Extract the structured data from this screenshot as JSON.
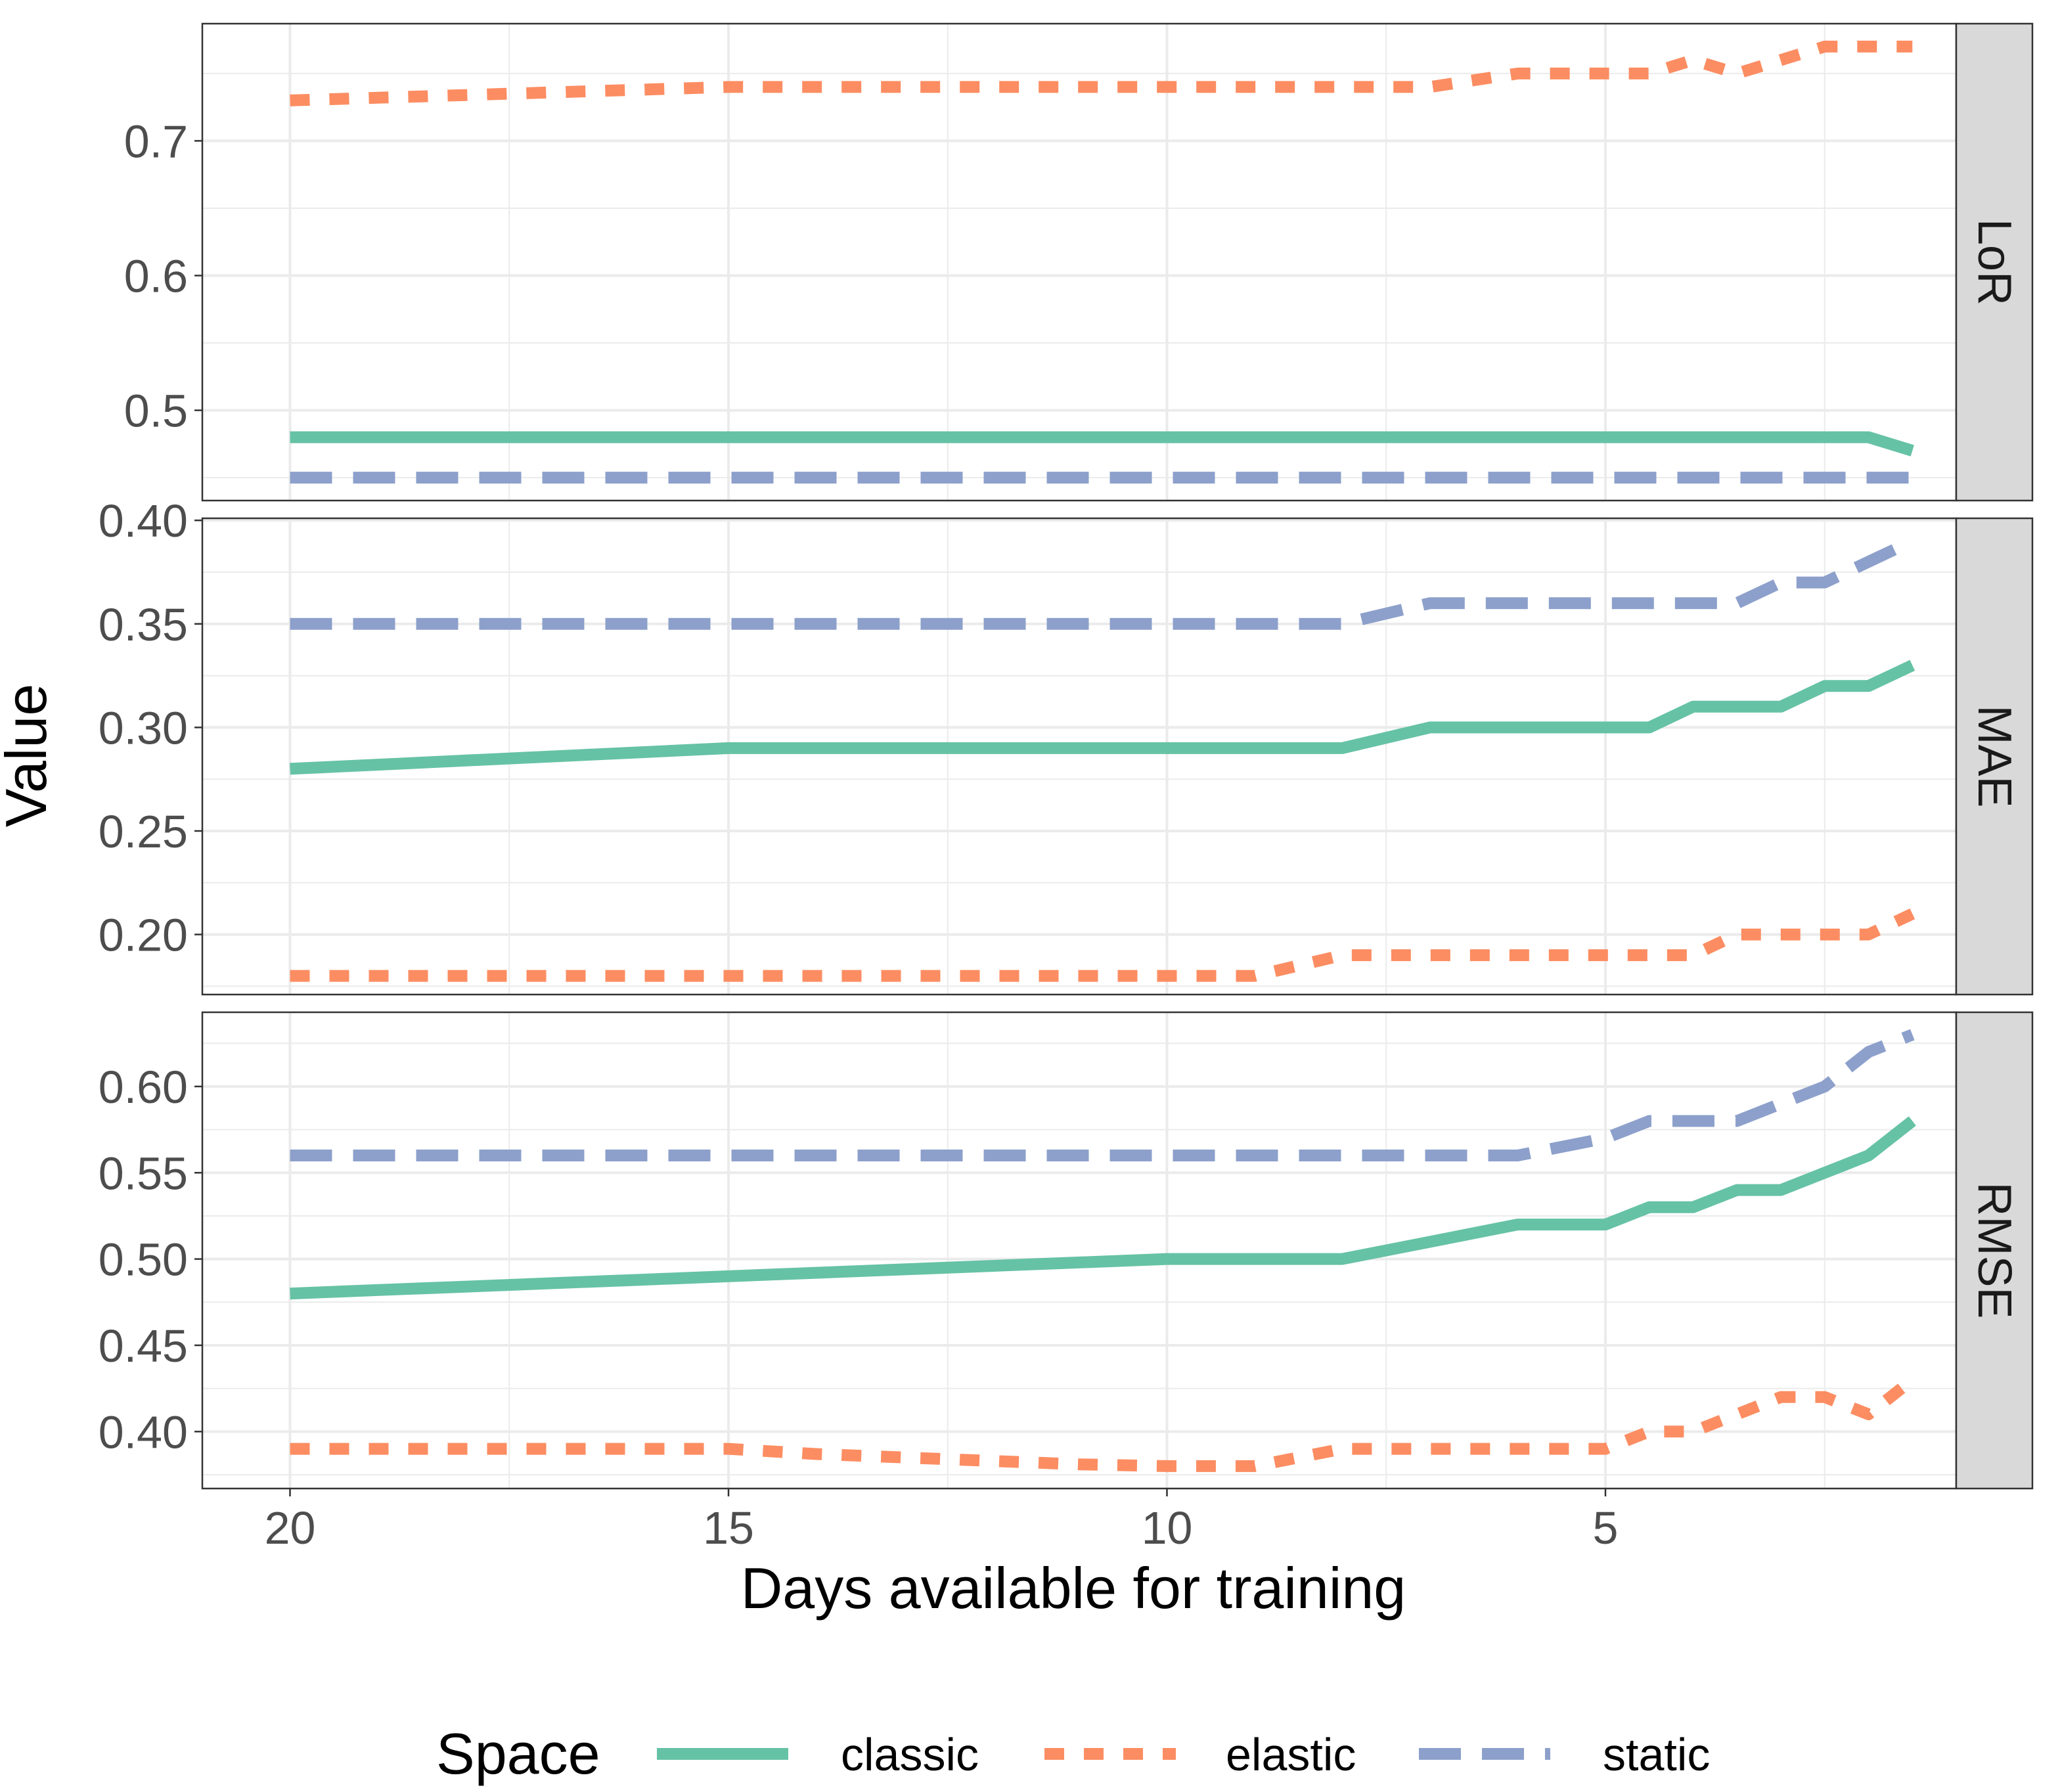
{
  "colors": {
    "classic": "#66c2a5",
    "elastic": "#fc8d62",
    "static": "#8da0cb",
    "grid": "#ebebeb",
    "strip": "#d9d9d9",
    "panel_border": "#333333",
    "tick_text": "#4d4d4d"
  },
  "chart_data": {
    "type": "line",
    "xlabel": "Days available for training",
    "ylabel": "Value",
    "x_reversed": true,
    "x": [
      20,
      19,
      18,
      17,
      16,
      15,
      14,
      13,
      12,
      11,
      10,
      9,
      8,
      7,
      6,
      5,
      4.5,
      4,
      3.5,
      3,
      2.5,
      2,
      1.5
    ],
    "xlim": [
      21,
      1
    ],
    "x_ticks": [
      20,
      15,
      10,
      5
    ],
    "x_tick_labels": [
      "20",
      "15",
      "10",
      "5"
    ],
    "legend": {
      "title": "Space",
      "position": "bottom",
      "entries": [
        {
          "name": "classic",
          "dash": "solid"
        },
        {
          "name": "elastic",
          "dash": "dotted"
        },
        {
          "name": "static",
          "dash": "dashed"
        }
      ]
    },
    "panels": [
      {
        "strip": "LoR",
        "ylim": [
          0.433,
          0.787
        ],
        "y_ticks": [
          0.5,
          0.6,
          0.7
        ],
        "y_tick_labels": [
          "0.5",
          "0.6",
          "0.7"
        ],
        "series": [
          {
            "name": "classic",
            "values": [
              0.48,
              0.48,
              0.48,
              0.48,
              0.48,
              0.48,
              0.48,
              0.48,
              0.48,
              0.48,
              0.48,
              0.48,
              0.48,
              0.48,
              0.48,
              0.48,
              0.48,
              0.48,
              0.48,
              0.48,
              0.48,
              0.48,
              0.47
            ]
          },
          {
            "name": "elastic",
            "values": [
              0.73,
              0.732,
              0.734,
              0.736,
              0.738,
              0.74,
              0.74,
              0.74,
              0.74,
              0.74,
              0.74,
              0.74,
              0.74,
              0.74,
              0.75,
              0.75,
              0.75,
              0.76,
              0.75,
              0.76,
              0.77,
              0.77,
              0.77
            ]
          },
          {
            "name": "static",
            "values": [
              0.45,
              0.45,
              0.45,
              0.45,
              0.45,
              0.45,
              0.45,
              0.45,
              0.45,
              0.45,
              0.45,
              0.45,
              0.45,
              0.45,
              0.45,
              0.45,
              0.45,
              0.45,
              0.45,
              0.45,
              0.45,
              0.45,
              0.45
            ]
          }
        ]
      },
      {
        "strip": "MAE",
        "ylim": [
          0.171,
          0.401
        ],
        "y_ticks": [
          0.2,
          0.25,
          0.3,
          0.35,
          0.4
        ],
        "y_tick_labels": [
          "0.20",
          "0.25",
          "0.30",
          "0.35",
          "0.40"
        ],
        "series": [
          {
            "name": "classic",
            "values": [
              0.28,
              0.282,
              0.284,
              0.286,
              0.288,
              0.29,
              0.29,
              0.29,
              0.29,
              0.29,
              0.29,
              0.29,
              0.29,
              0.3,
              0.3,
              0.3,
              0.3,
              0.31,
              0.31,
              0.31,
              0.32,
              0.32,
              0.33
            ]
          },
          {
            "name": "elastic",
            "values": [
              0.18,
              0.18,
              0.18,
              0.18,
              0.18,
              0.18,
              0.18,
              0.18,
              0.18,
              0.18,
              0.18,
              0.18,
              0.19,
              0.19,
              0.19,
              0.19,
              0.19,
              0.19,
              0.2,
              0.2,
              0.2,
              0.2,
              0.21
            ]
          },
          {
            "name": "static",
            "values": [
              0.35,
              0.35,
              0.35,
              0.35,
              0.35,
              0.35,
              0.35,
              0.35,
              0.35,
              0.35,
              0.35,
              0.35,
              0.35,
              0.36,
              0.36,
              0.36,
              0.36,
              0.36,
              0.36,
              0.37,
              0.37,
              0.38,
              0.39
            ]
          }
        ]
      },
      {
        "strip": "RMSE",
        "ylim": [
          0.367,
          0.643
        ],
        "y_ticks": [
          0.4,
          0.45,
          0.5,
          0.55,
          0.6
        ],
        "y_tick_labels": [
          "0.40",
          "0.45",
          "0.50",
          "0.55",
          "0.60"
        ],
        "series": [
          {
            "name": "classic",
            "values": [
              0.48,
              0.482,
              0.484,
              0.486,
              0.488,
              0.49,
              0.492,
              0.494,
              0.496,
              0.498,
              0.5,
              0.5,
              0.5,
              0.51,
              0.52,
              0.52,
              0.53,
              0.53,
              0.54,
              0.54,
              0.55,
              0.56,
              0.58
            ]
          },
          {
            "name": "elastic",
            "values": [
              0.39,
              0.39,
              0.39,
              0.39,
              0.39,
              0.39,
              0.387,
              0.385,
              0.383,
              0.381,
              0.38,
              0.38,
              0.39,
              0.39,
              0.39,
              0.39,
              0.4,
              0.4,
              0.41,
              0.42,
              0.42,
              0.41,
              0.43
            ]
          },
          {
            "name": "static",
            "values": [
              0.56,
              0.56,
              0.56,
              0.56,
              0.56,
              0.56,
              0.56,
              0.56,
              0.56,
              0.56,
              0.56,
              0.56,
              0.56,
              0.56,
              0.56,
              0.57,
              0.58,
              0.58,
              0.58,
              0.59,
              0.6,
              0.62,
              0.63
            ]
          }
        ]
      }
    ]
  }
}
